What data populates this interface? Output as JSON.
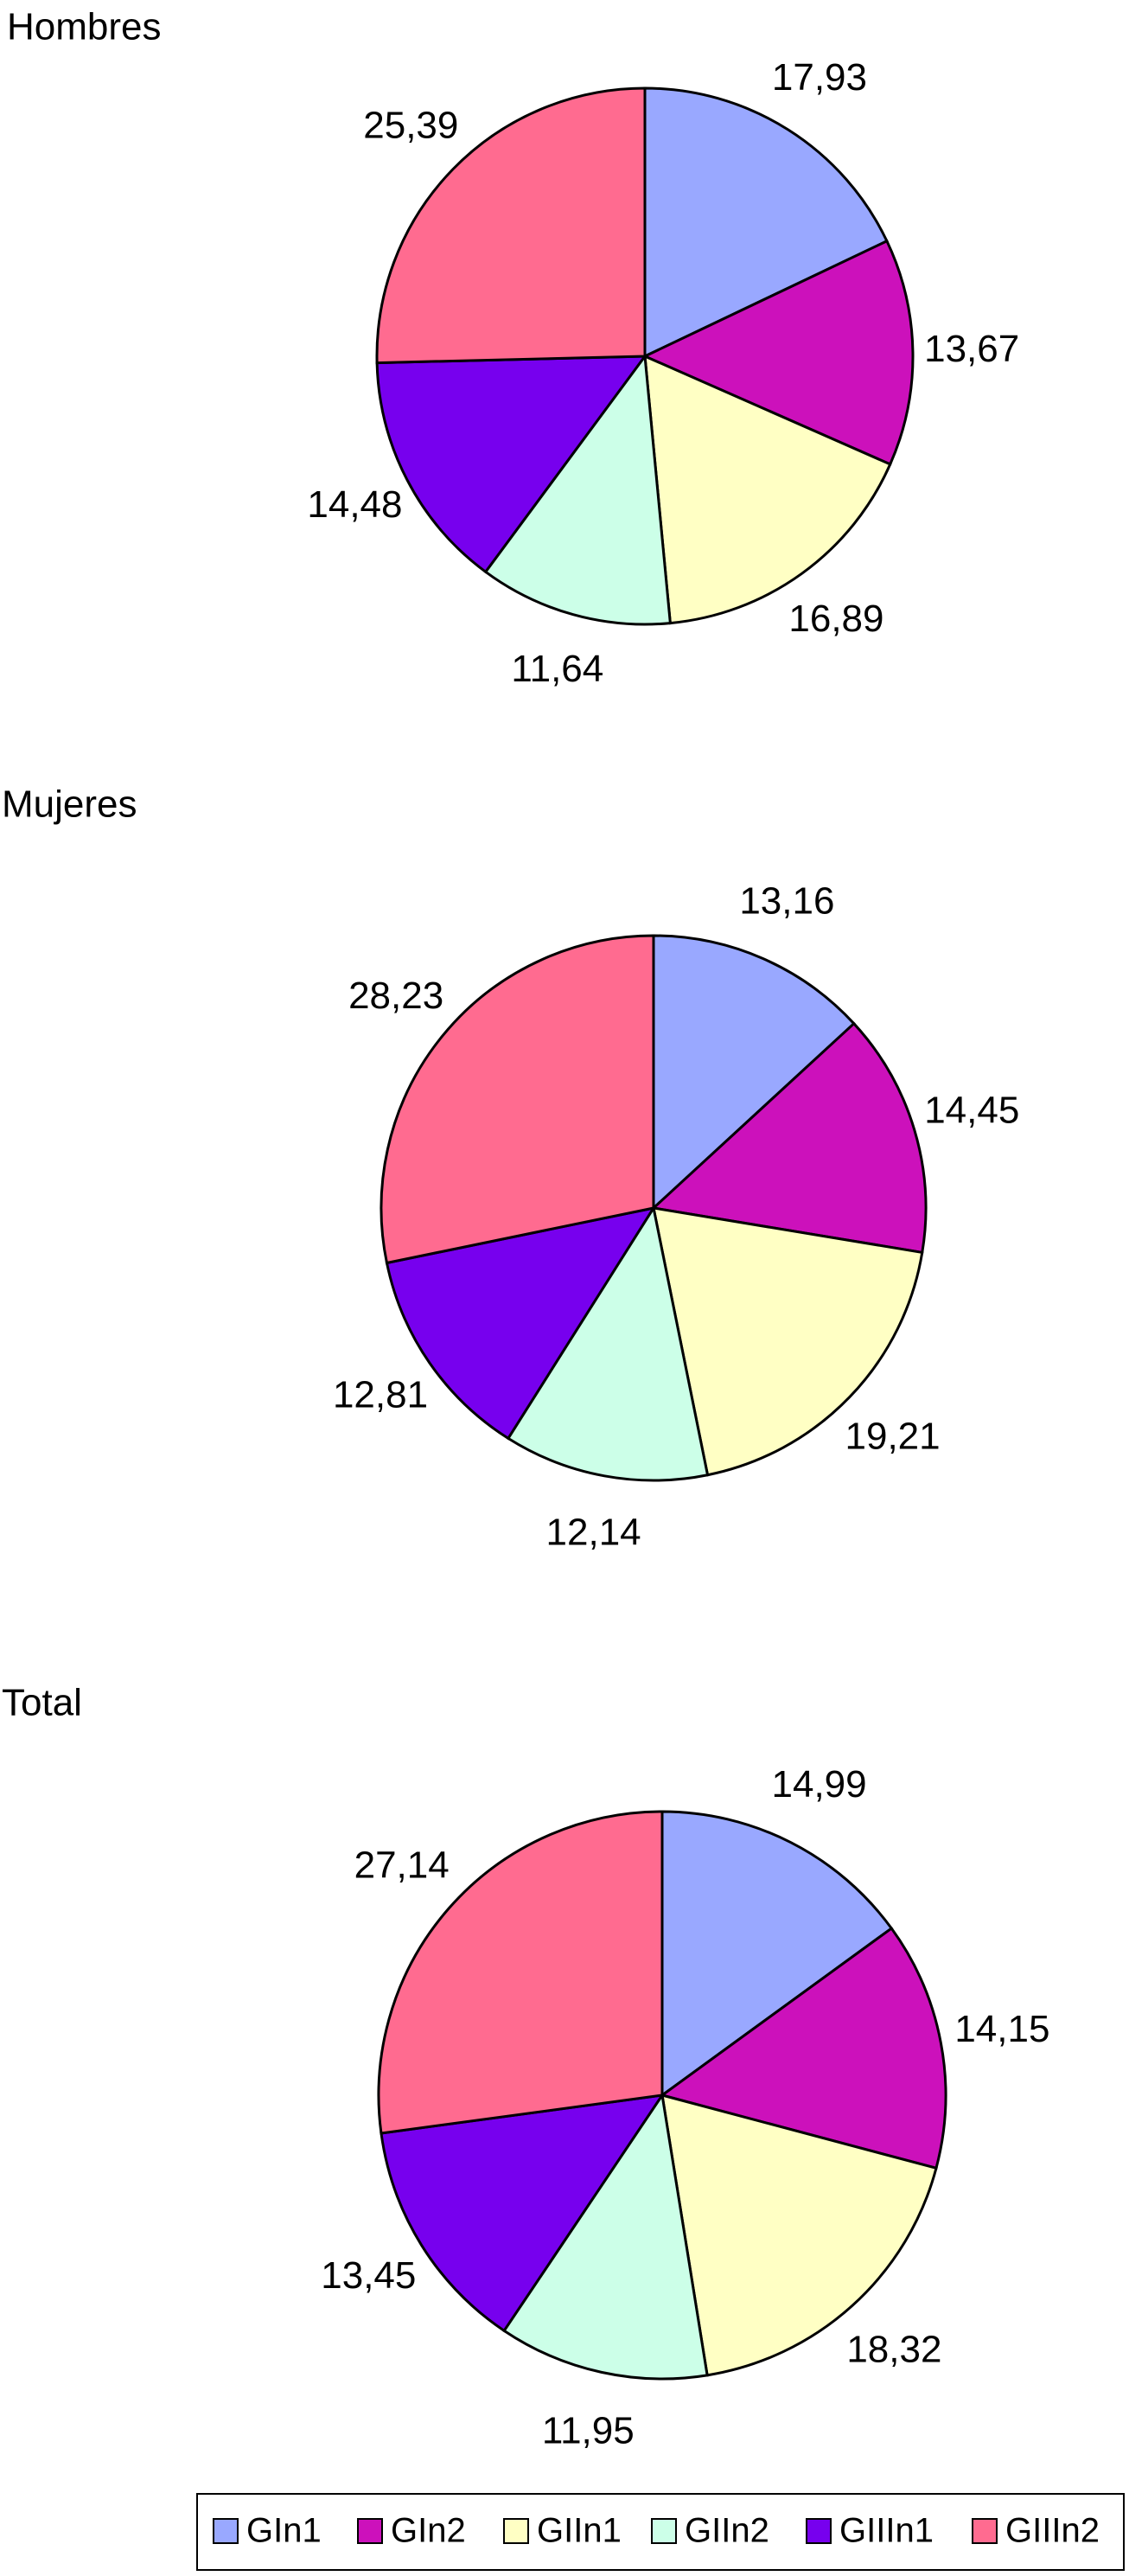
{
  "chart_data": [
    {
      "type": "pie",
      "title": "Hombres",
      "categories": [
        "GIn1",
        "GIn2",
        "GIIn1",
        "GIIn2",
        "GIIIn1",
        "GIIIn2"
      ],
      "values": [
        17.93,
        13.67,
        16.89,
        11.64,
        14.48,
        25.39
      ],
      "value_labels": [
        "17,93",
        "13,67",
        "16,89",
        "11,64",
        "14,48",
        "25,39"
      ],
      "colors": [
        "#99a8ff",
        "#cc11bb",
        "#ffffc4",
        "#ccffe8",
        "#7700ee",
        "#ff6b90"
      ]
    },
    {
      "type": "pie",
      "title": "Mujeres",
      "categories": [
        "GIn1",
        "GIn2",
        "GIIn1",
        "GIIn2",
        "GIIIn1",
        "GIIIn2"
      ],
      "values": [
        13.16,
        14.45,
        19.21,
        12.14,
        12.81,
        28.23
      ],
      "value_labels": [
        "13,16",
        "14,45",
        "19,21",
        "12,14",
        "12,81",
        "28,23"
      ],
      "colors": [
        "#99a8ff",
        "#cc11bb",
        "#ffffc4",
        "#ccffe8",
        "#7700ee",
        "#ff6b90"
      ]
    },
    {
      "type": "pie",
      "title": "Total",
      "categories": [
        "GIn1",
        "GIn2",
        "GIIn1",
        "GIIn2",
        "GIIIn1",
        "GIIIn2"
      ],
      "values": [
        14.99,
        14.15,
        18.32,
        11.95,
        13.45,
        27.14
      ],
      "value_labels": [
        "14,99",
        "14,15",
        "18,32",
        "11,95",
        "13,45",
        "27,14"
      ],
      "colors": [
        "#99a8ff",
        "#cc11bb",
        "#ffffc4",
        "#ccffe8",
        "#7700ee",
        "#ff6b90"
      ]
    }
  ]
}
